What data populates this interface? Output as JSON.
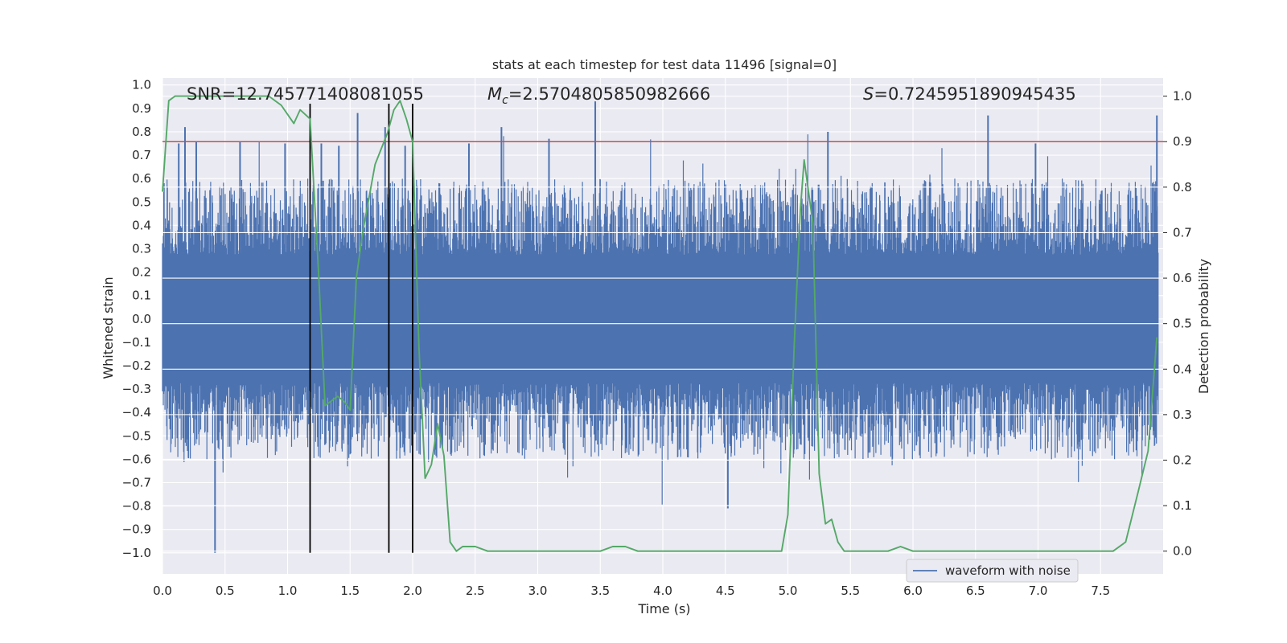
{
  "chart_data": {
    "type": "line",
    "title": "stats at each timestep for test data 11496 [signal=0]",
    "xlabel": "Time (s)",
    "ylabel_left": "Whitened strain",
    "ylabel_right": "Detection probability",
    "xlim": [
      0.0,
      8.0
    ],
    "ylim_left": [
      -1.09,
      1.03
    ],
    "ylim_right": [
      -0.05,
      1.04
    ],
    "xticks": [
      "0.0",
      "0.5",
      "1.0",
      "1.5",
      "2.0",
      "2.5",
      "3.0",
      "3.5",
      "4.0",
      "4.5",
      "5.0",
      "5.5",
      "6.0",
      "6.5",
      "7.0",
      "7.5"
    ],
    "yticks_left": [
      "1.0",
      "0.9",
      "0.8",
      "0.7",
      "0.6",
      "0.5",
      "0.4",
      "0.3",
      "0.2",
      "0.1",
      "0.0",
      "−0.1",
      "−0.2",
      "−0.3",
      "−0.4",
      "−0.5",
      "−0.6",
      "−0.7",
      "−0.8",
      "−0.9",
      "−1.0"
    ],
    "yticks_right": [
      "1.0",
      "0.9",
      "0.8",
      "0.7",
      "0.6",
      "0.5",
      "0.4",
      "0.3",
      "0.2",
      "0.1",
      "0.0"
    ],
    "annotations": {
      "snr": "SNR=12.745771408081055",
      "mc_symbol": "M",
      "mc_sub": "c",
      "mc_value": "=2.5704805850982666",
      "s_symbol": "S",
      "s_value": "=0.7245951890945435"
    },
    "threshold": {
      "value": 0.9,
      "axis": "right",
      "color": "#c44e52"
    },
    "vlines": [
      1.18,
      1.81,
      2.0
    ],
    "vline_ymin": -1.0,
    "vline_ymax": 0.92,
    "legend": {
      "label": "waveform with noise",
      "location": "lower right"
    },
    "series": [
      {
        "name": "waveform with noise",
        "axis": "left",
        "color": "#4c72b0",
        "kind": "noise",
        "sample_count": 2400,
        "envelope": {
          "typical_positive": 0.5,
          "typical_negative": -0.5,
          "max": 0.93,
          "min": -1.0
        },
        "spikes": [
          {
            "x": 0.13,
            "y": 0.75
          },
          {
            "x": 0.18,
            "y": 0.82
          },
          {
            "x": 0.27,
            "y": 0.76
          },
          {
            "x": 0.42,
            "y": -1.0
          },
          {
            "x": 0.62,
            "y": 0.76
          },
          {
            "x": 0.98,
            "y": 0.75
          },
          {
            "x": 1.27,
            "y": 0.75
          },
          {
            "x": 1.41,
            "y": 0.74
          },
          {
            "x": 1.56,
            "y": 0.88
          },
          {
            "x": 1.78,
            "y": 0.82
          },
          {
            "x": 1.94,
            "y": 0.74
          },
          {
            "x": 2.45,
            "y": 0.75
          },
          {
            "x": 2.71,
            "y": 0.82
          },
          {
            "x": 3.09,
            "y": 0.77
          },
          {
            "x": 3.46,
            "y": 0.93
          },
          {
            "x": 4.52,
            "y": -0.81
          },
          {
            "x": 5.32,
            "y": 0.8
          },
          {
            "x": 6.6,
            "y": 0.87
          },
          {
            "x": 6.98,
            "y": 0.75
          },
          {
            "x": 7.95,
            "y": 0.87
          }
        ]
      },
      {
        "name": "detection probability",
        "axis": "right",
        "color": "#55a868",
        "x": [
          0.0,
          0.05,
          0.1,
          0.2,
          0.3,
          0.5,
          0.7,
          0.85,
          0.95,
          1.05,
          1.1,
          1.18,
          1.25,
          1.3,
          1.35,
          1.4,
          1.45,
          1.5,
          1.55,
          1.6,
          1.7,
          1.8,
          1.85,
          1.9,
          1.95,
          2.0,
          2.05,
          2.1,
          2.15,
          2.2,
          2.25,
          2.3,
          2.35,
          2.4,
          2.5,
          2.6,
          2.8,
          3.0,
          3.2,
          3.4,
          3.5,
          3.6,
          3.7,
          3.8,
          4.0,
          4.1,
          4.2,
          4.4,
          4.6,
          4.8,
          4.95,
          5.0,
          5.05,
          5.1,
          5.13,
          5.2,
          5.25,
          5.3,
          5.35,
          5.4,
          5.45,
          5.5,
          5.6,
          5.7,
          5.8,
          5.9,
          6.0,
          6.2,
          6.4,
          6.6,
          6.8,
          7.0,
          7.2,
          7.4,
          7.6,
          7.7,
          7.8,
          7.88,
          7.95
        ],
        "y": [
          0.79,
          0.99,
          1.0,
          1.0,
          1.0,
          1.0,
          1.0,
          1.0,
          0.98,
          0.94,
          0.97,
          0.95,
          0.6,
          0.32,
          0.33,
          0.34,
          0.33,
          0.31,
          0.6,
          0.7,
          0.85,
          0.92,
          0.97,
          0.99,
          0.95,
          0.9,
          0.45,
          0.16,
          0.19,
          0.28,
          0.21,
          0.02,
          0.0,
          0.01,
          0.01,
          0.0,
          0.0,
          0.0,
          0.0,
          0.0,
          0.0,
          0.01,
          0.01,
          0.0,
          0.0,
          0.0,
          0.0,
          0.0,
          0.0,
          0.0,
          0.0,
          0.08,
          0.45,
          0.75,
          0.86,
          0.72,
          0.17,
          0.06,
          0.07,
          0.02,
          0.0,
          0.0,
          0.0,
          0.0,
          0.0,
          0.01,
          0.0,
          0.0,
          0.0,
          0.0,
          0.0,
          0.0,
          0.0,
          0.0,
          0.0,
          0.02,
          0.13,
          0.22,
          0.47
        ]
      }
    ]
  }
}
